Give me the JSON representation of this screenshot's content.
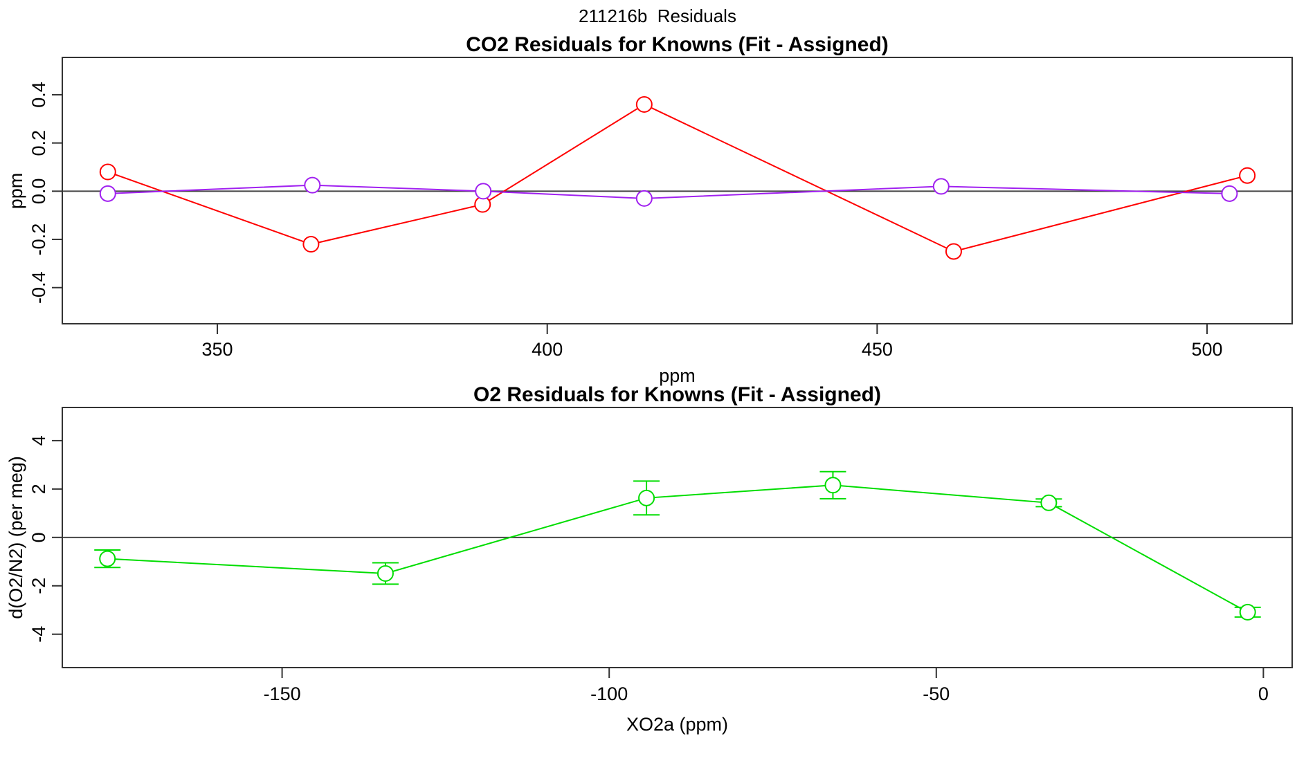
{
  "page": {
    "title": "211216b  Residuals"
  },
  "colors": {
    "frame": "#333333",
    "zero_line": "#454545",
    "text": "#000000",
    "background": "#ffffff",
    "red_series": "#ff0000",
    "purple_series": "#a020f0",
    "green_series": "#00dd00"
  },
  "chart_data": [
    {
      "name": "co2-residuals",
      "type": "line",
      "title": "CO2 Residuals for Knowns (Fit - Assigned)",
      "xlabel": "ppm",
      "ylabel": "ppm",
      "xlim": [
        326.5,
        512.9
      ],
      "ylim": [
        -0.55,
        0.555
      ],
      "grid": false,
      "zero_line": true,
      "xticks": [
        350,
        400,
        450,
        500
      ],
      "xtick_labels": [
        "350",
        "400",
        "450",
        "500"
      ],
      "yticks": [
        -0.4,
        -0.2,
        0.0,
        0.2,
        0.4
      ],
      "ytick_labels": [
        "-0.4",
        "-0.2",
        "0.0",
        "0.2",
        "0.4"
      ],
      "series": [
        {
          "name": "red",
          "color": "#ff0000",
          "marker": "open-circle",
          "points": [
            [
              333.4,
              0.08
            ],
            [
              364.2,
              -0.22
            ],
            [
              390.2,
              -0.055
            ],
            [
              414.7,
              0.36
            ],
            [
              461.6,
              -0.25
            ],
            [
              506.1,
              0.065
            ]
          ]
        },
        {
          "name": "purple",
          "color": "#a020f0",
          "marker": "open-circle",
          "points": [
            [
              333.4,
              -0.01
            ],
            [
              364.4,
              0.025
            ],
            [
              390.3,
              0.0
            ],
            [
              414.7,
              -0.03
            ],
            [
              459.7,
              0.02
            ],
            [
              503.4,
              -0.01
            ]
          ]
        }
      ]
    },
    {
      "name": "o2-residuals",
      "type": "line",
      "title": "O2 Residuals for Knowns (Fit - Assigned)",
      "xlabel": "XO2a (ppm)",
      "ylabel": "d(O2/N2) (per meg)",
      "xlim": [
        -183.6,
        4.4
      ],
      "ylim": [
        -5.38,
        5.37
      ],
      "grid": false,
      "zero_line": true,
      "xticks": [
        -150,
        -100,
        -50,
        0
      ],
      "xtick_labels": [
        "-150",
        "-100",
        "-50",
        "0"
      ],
      "yticks": [
        -4,
        -2,
        0,
        2,
        4
      ],
      "ytick_labels": [
        "-4",
        "-2",
        "0",
        "2",
        "4"
      ],
      "series": [
        {
          "name": "green",
          "color": "#00dd00",
          "marker": "open-circle",
          "has_error_bars": true,
          "points": [
            [
              -176.7,
              -0.88,
              0.36
            ],
            [
              -134.2,
              -1.49,
              0.44
            ],
            [
              -94.3,
              1.63,
              0.7
            ],
            [
              -65.8,
              2.16,
              0.56
            ],
            [
              -32.8,
              1.43,
              0.16
            ],
            [
              -2.4,
              -3.09,
              0.2
            ]
          ]
        }
      ]
    }
  ]
}
